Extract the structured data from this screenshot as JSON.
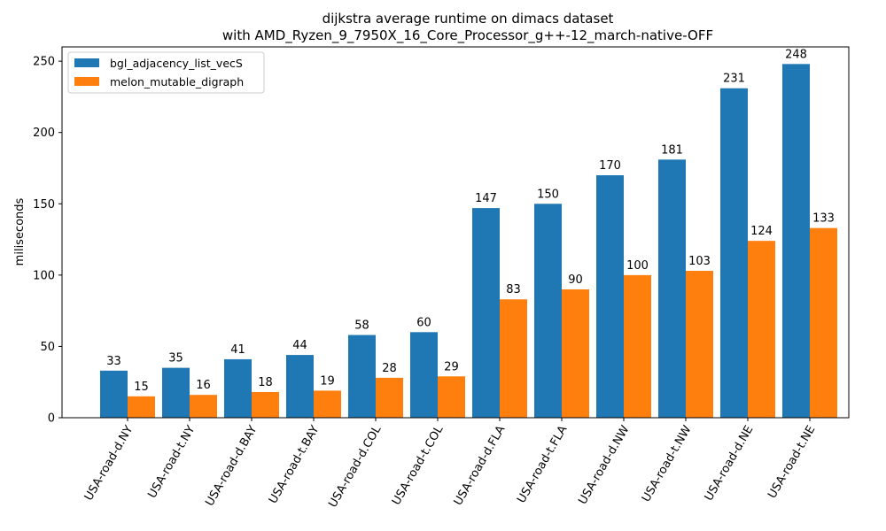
{
  "chart_data": {
    "type": "bar",
    "title": "dijkstra average runtime on dimacs dataset",
    "subtitle": "with AMD_Ryzen_9_7950X_16_Core_Processor_g++-12_march-native-OFF",
    "xlabel": "",
    "ylabel": "miliseconds",
    "ylim": [
      0,
      260
    ],
    "yticks": [
      0,
      50,
      100,
      150,
      200,
      250
    ],
    "grid": false,
    "legend_position": "top-left",
    "categories": [
      "USA-road-d.NY",
      "USA-road-t.NY",
      "USA-road-d.BAY",
      "USA-road-t.BAY",
      "USA-road-d.COL",
      "USA-road-t.COL",
      "USA-road-d.FLA",
      "USA-road-t.FLA",
      "USA-road-d.NW",
      "USA-road-t.NW",
      "USA-road-d.NE",
      "USA-road-t.NE"
    ],
    "series": [
      {
        "name": "bgl_adjacency_list_vecS",
        "color": "#1f77b4",
        "values": [
          33,
          35,
          41,
          44,
          58,
          60,
          147,
          150,
          170,
          181,
          231,
          248
        ]
      },
      {
        "name": "melon_mutable_digraph",
        "color": "#ff7f0e",
        "values": [
          15,
          16,
          18,
          19,
          28,
          29,
          83,
          90,
          100,
          103,
          124,
          133
        ]
      }
    ]
  }
}
